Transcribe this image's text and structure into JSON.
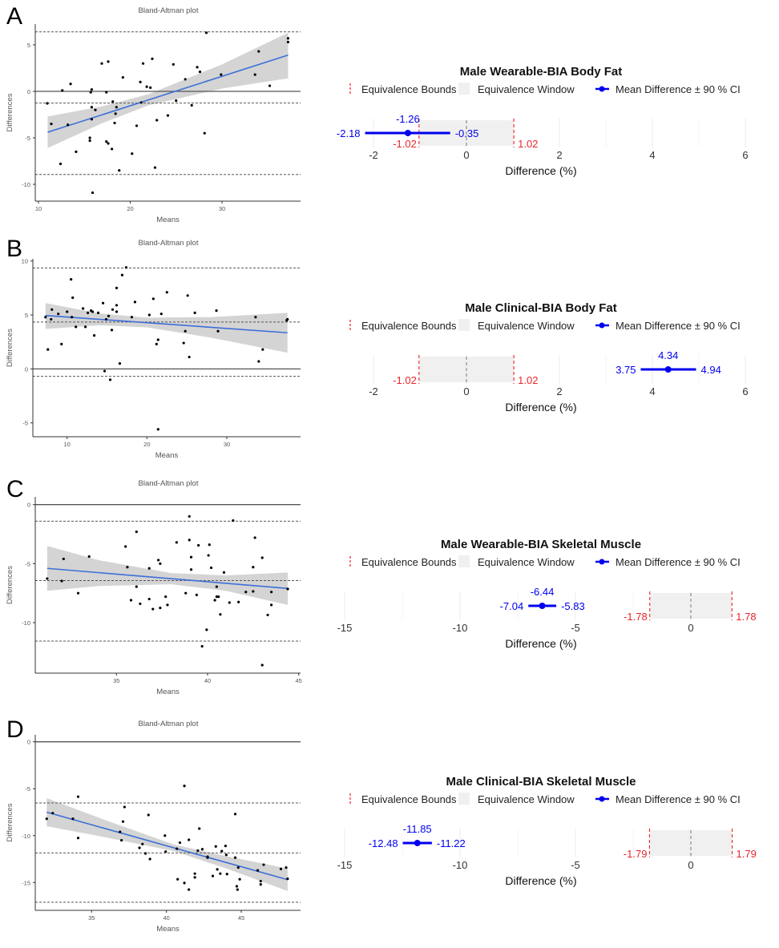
{
  "legend": {
    "bounds": "Equivalence Bounds",
    "window": "Equivalence Window",
    "mean": "Mean Difference ± 90 % CI"
  },
  "colors": {
    "band": "#cccccc",
    "regression": "#3d6fd8",
    "ci": "#0000ee",
    "bound": "#e8262b",
    "window": "#f0f0f0",
    "grid": "#ebebeb"
  },
  "chart_data": [
    {
      "panel": "A",
      "type": "scatter",
      "title": "Bland-Altman plot",
      "xlabel": "Means",
      "ylabel": "Differences",
      "xticks": [
        10,
        20,
        30
      ],
      "yticks": [
        5,
        0,
        -5,
        -10
      ],
      "mean": -1.26,
      "loa_upper": 6.4,
      "loa_lower": -8.94,
      "regression": [
        [
          11,
          -4.4
        ],
        [
          37.2,
          3.9
        ]
      ],
      "ci_band": [
        [
          11,
          -6.1,
          -2.7
        ],
        [
          17,
          -3.4,
          -1.6
        ],
        [
          22,
          -1.5,
          -0.3
        ],
        [
          30,
          0.3,
          2.9
        ],
        [
          37.2,
          1.4,
          6.3
        ]
      ],
      "points": [
        [
          10.96,
          -1.29
        ],
        [
          11.4,
          -3.5
        ],
        [
          12.6,
          0.1
        ],
        [
          12.4,
          -7.8
        ],
        [
          13.5,
          0.8
        ],
        [
          13.2,
          -3.6
        ],
        [
          14.1,
          -6.5
        ],
        [
          15.6,
          -5.0
        ],
        [
          15.6,
          -5.3
        ],
        [
          15.7,
          -0.1
        ],
        [
          15.8,
          0.2
        ],
        [
          15.8,
          -1.7
        ],
        [
          15.8,
          -3.0
        ],
        [
          15.9,
          -10.9
        ],
        [
          16.2,
          -2.0
        ],
        [
          16.9,
          3.0
        ],
        [
          17.6,
          3.2
        ],
        [
          17.4,
          -0.1
        ],
        [
          17.4,
          -5.4
        ],
        [
          17.6,
          -5.6
        ],
        [
          18.0,
          -6.2
        ],
        [
          18.1,
          -1.1
        ],
        [
          18.3,
          -3.4
        ],
        [
          18.4,
          -2.4
        ],
        [
          18.5,
          -1.7
        ],
        [
          18.8,
          -8.5
        ],
        [
          19.2,
          1.5
        ],
        [
          20.2,
          -6.7
        ],
        [
          20.7,
          -3.7
        ],
        [
          21.1,
          1.0
        ],
        [
          21.2,
          -1.2
        ],
        [
          21.4,
          3.0
        ],
        [
          21.8,
          0.5
        ],
        [
          22.2,
          0.4
        ],
        [
          22.4,
          3.5
        ],
        [
          22.7,
          -8.2
        ],
        [
          22.9,
          -3.1
        ],
        [
          24.1,
          -2.6
        ],
        [
          24.7,
          2.9
        ],
        [
          25.0,
          -1.0
        ],
        [
          26.0,
          1.3
        ],
        [
          26.7,
          -1.5
        ],
        [
          27.3,
          2.6
        ],
        [
          27.6,
          2.1
        ],
        [
          28.1,
          -4.5
        ],
        [
          28.3,
          6.3
        ],
        [
          29.9,
          1.8
        ],
        [
          33.6,
          1.8
        ],
        [
          34.0,
          4.3
        ],
        [
          35.2,
          0.6
        ],
        [
          37.2,
          5.7
        ],
        [
          37.2,
          5.3
        ]
      ]
    },
    {
      "panel": "B",
      "type": "scatter",
      "title": "Bland-Altman plot",
      "xlabel": "Means",
      "ylabel": "Differences",
      "xticks": [
        10,
        20,
        30
      ],
      "yticks": [
        10,
        5,
        0,
        -5
      ],
      "mean": 4.34,
      "loa_upper": 9.36,
      "loa_lower": -0.69,
      "regression": [
        [
          7.3,
          4.95
        ],
        [
          37.6,
          3.35
        ]
      ],
      "ci_band": [
        [
          7.3,
          3.7,
          6.1
        ],
        [
          14,
          4.05,
          5.15
        ],
        [
          20,
          3.85,
          4.75
        ],
        [
          28,
          2.9,
          4.8
        ],
        [
          37.6,
          1.5,
          5.2
        ]
      ],
      "points": [
        [
          7.3,
          4.8
        ],
        [
          7.6,
          1.8
        ],
        [
          8.1,
          5.5
        ],
        [
          8.0,
          4.6
        ],
        [
          8.9,
          5.1
        ],
        [
          9.3,
          2.3
        ],
        [
          10.0,
          5.3
        ],
        [
          10.5,
          8.3
        ],
        [
          10.7,
          6.6
        ],
        [
          10.6,
          4.8
        ],
        [
          11.1,
          3.9
        ],
        [
          12.0,
          5.6
        ],
        [
          12.3,
          3.9
        ],
        [
          12.6,
          5.2
        ],
        [
          13.0,
          5.4
        ],
        [
          13.2,
          5.3
        ],
        [
          13.4,
          3.1
        ],
        [
          13.9,
          5.2
        ],
        [
          14.5,
          6.1
        ],
        [
          14.7,
          -0.2
        ],
        [
          14.9,
          4.6
        ],
        [
          15.2,
          4.9
        ],
        [
          15.4,
          -1.0
        ],
        [
          15.6,
          3.6
        ],
        [
          15.7,
          5.5
        ],
        [
          16.2,
          7.5
        ],
        [
          16.2,
          5.9
        ],
        [
          16.2,
          5.3
        ],
        [
          16.6,
          0.5
        ],
        [
          16.9,
          8.7
        ],
        [
          17.4,
          9.4
        ],
        [
          18.1,
          4.8
        ],
        [
          18.5,
          6.2
        ],
        [
          20.3,
          5.0
        ],
        [
          20.8,
          6.5
        ],
        [
          21.2,
          2.3
        ],
        [
          21.4,
          2.7
        ],
        [
          21.4,
          -5.6
        ],
        [
          21.8,
          5.1
        ],
        [
          22.5,
          7.1
        ],
        [
          24.6,
          2.4
        ],
        [
          24.8,
          3.5
        ],
        [
          25.1,
          6.8
        ],
        [
          25.3,
          1.1
        ],
        [
          26.0,
          5.2
        ],
        [
          28.7,
          5.4
        ],
        [
          28.9,
          3.5
        ],
        [
          33.6,
          4.8
        ],
        [
          34.0,
          0.7
        ],
        [
          34.5,
          1.8
        ],
        [
          37.5,
          4.5
        ],
        [
          37.6,
          4.6
        ]
      ]
    },
    {
      "panel": "C",
      "type": "scatter",
      "title": "Bland-Altman plot",
      "xlabel": "Means",
      "ylabel": "Differences",
      "xticks": [
        35,
        40,
        45
      ],
      "yticks": [
        0,
        -5,
        -10
      ],
      "mean": -6.44,
      "loa_upper": -1.4,
      "loa_lower": -11.56,
      "regression": [
        [
          31.2,
          -5.4
        ],
        [
          44.4,
          -7.1
        ]
      ],
      "ci_band": [
        [
          31.2,
          -7.3,
          -3.5
        ],
        [
          34,
          -6.9,
          -4.7
        ],
        [
          38,
          -6.75,
          -5.8
        ],
        [
          41,
          -7.3,
          -6.0
        ],
        [
          44.4,
          -8.5,
          -5.75
        ]
      ],
      "points": [
        [
          31.2,
          -6.27
        ],
        [
          32.0,
          -6.47
        ],
        [
          32.1,
          -4.6
        ],
        [
          32.9,
          -7.5
        ],
        [
          33.5,
          -4.4
        ],
        [
          35.5,
          -3.55
        ],
        [
          35.6,
          -5.3
        ],
        [
          35.8,
          -8.1
        ],
        [
          36.1,
          -2.3
        ],
        [
          36.1,
          -6.95
        ],
        [
          36.3,
          -8.4
        ],
        [
          36.8,
          -8.0
        ],
        [
          36.8,
          -5.4
        ],
        [
          37.0,
          -8.85
        ],
        [
          37.3,
          -4.7
        ],
        [
          37.4,
          -5.0
        ],
        [
          37.4,
          -8.75
        ],
        [
          37.7,
          -7.8
        ],
        [
          37.8,
          -8.5
        ],
        [
          38.3,
          -3.2
        ],
        [
          38.8,
          -7.5
        ],
        [
          39.0,
          -1.0
        ],
        [
          39.0,
          -3.0
        ],
        [
          39.1,
          -4.45
        ],
        [
          39.1,
          -5.5
        ],
        [
          39.4,
          -7.65
        ],
        [
          39.5,
          -3.45
        ],
        [
          39.7,
          -12.0
        ],
        [
          39.95,
          -10.6
        ],
        [
          40.1,
          -3.4
        ],
        [
          40.05,
          -4.3
        ],
        [
          40.2,
          -5.35
        ],
        [
          40.4,
          -8.1
        ],
        [
          40.5,
          -6.95
        ],
        [
          40.5,
          -7.8
        ],
        [
          40.6,
          -7.8
        ],
        [
          40.7,
          -9.3
        ],
        [
          40.9,
          -5.75
        ],
        [
          41.2,
          -8.3
        ],
        [
          41.4,
          -1.35
        ],
        [
          41.7,
          -8.25
        ],
        [
          42.1,
          -7.4
        ],
        [
          42.5,
          -5.3
        ],
        [
          42.5,
          -7.35
        ],
        [
          42.6,
          -2.8
        ],
        [
          43.0,
          -4.5
        ],
        [
          43.0,
          -13.6
        ],
        [
          43.3,
          -9.35
        ],
        [
          43.5,
          -8.5
        ],
        [
          43.5,
          -7.4
        ],
        [
          44.4,
          -7.15
        ]
      ]
    },
    {
      "panel": "D",
      "type": "scatter",
      "title": "Bland-Altman plot",
      "xlabel": "Means",
      "ylabel": "Differences",
      "xticks": [
        35,
        40,
        45
      ],
      "yticks": [
        0,
        -5,
        -10,
        -15
      ],
      "mean": -11.85,
      "loa_upper": -6.52,
      "loa_lower": -17.1,
      "regression": [
        [
          32,
          -7.5
        ],
        [
          48.1,
          -14.7
        ]
      ],
      "ci_band": [
        [
          32,
          -9.0,
          -6.0
        ],
        [
          36,
          -10.2,
          -8.4
        ],
        [
          40.5,
          -11.65,
          -10.95
        ],
        [
          44,
          -13.5,
          -12.2
        ],
        [
          48.1,
          -15.9,
          -13.5
        ]
      ],
      "points": [
        [
          32.0,
          -8.2
        ],
        [
          32.4,
          -7.6
        ],
        [
          33.75,
          -8.2
        ],
        [
          34.1,
          -5.85
        ],
        [
          34.1,
          -10.25
        ],
        [
          36.9,
          -9.6
        ],
        [
          37.0,
          -10.5
        ],
        [
          37.1,
          -8.5
        ],
        [
          37.2,
          -6.95
        ],
        [
          38.2,
          -11.3
        ],
        [
          38.4,
          -10.9
        ],
        [
          38.6,
          -11.9
        ],
        [
          38.8,
          -7.8
        ],
        [
          38.9,
          -12.5
        ],
        [
          39.9,
          -10.0
        ],
        [
          39.95,
          -11.7
        ],
        [
          40.7,
          -11.4
        ],
        [
          40.75,
          -14.65
        ],
        [
          40.9,
          -10.75
        ],
        [
          41.2,
          -4.7
        ],
        [
          41.2,
          -15.05
        ],
        [
          41.5,
          -10.45
        ],
        [
          41.5,
          -15.75
        ],
        [
          41.9,
          -14.05
        ],
        [
          41.9,
          -14.45
        ],
        [
          42.1,
          -11.6
        ],
        [
          42.2,
          -9.25
        ],
        [
          42.4,
          -11.45
        ],
        [
          42.75,
          -12.25
        ],
        [
          42.75,
          -12.35
        ],
        [
          43.1,
          -14.3
        ],
        [
          43.3,
          -11.15
        ],
        [
          43.4,
          -13.6
        ],
        [
          43.6,
          -14.05
        ],
        [
          43.7,
          -11.65
        ],
        [
          43.95,
          -11.1
        ],
        [
          44.0,
          -12.05
        ],
        [
          44.05,
          -14.1
        ],
        [
          44.6,
          -7.7
        ],
        [
          44.6,
          -12.35
        ],
        [
          44.7,
          -15.4
        ],
        [
          44.75,
          -15.75
        ],
        [
          44.8,
          -13.4
        ],
        [
          44.9,
          -14.65
        ],
        [
          46.1,
          -13.7
        ],
        [
          46.3,
          -14.85
        ],
        [
          46.3,
          -15.2
        ],
        [
          46.5,
          -13.1
        ],
        [
          47.65,
          -13.55
        ],
        [
          48.0,
          -13.4
        ],
        [
          48.1,
          -14.6
        ]
      ]
    },
    {
      "panel": "A",
      "type": "equivalence",
      "title": "Male Wearable-BIA Body Fat",
      "xlabel": "Difference (%)",
      "xticks": [
        -2,
        0,
        2,
        4,
        6
      ],
      "bounds": [
        -1.02,
        1.02
      ],
      "bound_labels": [
        "-1.02",
        "1.02"
      ],
      "mean": -1.26,
      "ci": [
        -2.18,
        -0.35
      ],
      "labels": [
        "-1.26",
        "-2.18",
        "-0.35"
      ]
    },
    {
      "panel": "B",
      "type": "equivalence",
      "title": "Male Clinical-BIA Body Fat",
      "xlabel": "Difference (%)",
      "xticks": [
        -2,
        0,
        2,
        4,
        6
      ],
      "bounds": [
        -1.02,
        1.02
      ],
      "bound_labels": [
        "-1.02",
        "1.02"
      ],
      "mean": 4.34,
      "ci": [
        3.75,
        4.94
      ],
      "labels": [
        "4.34",
        "3.75",
        "4.94"
      ]
    },
    {
      "panel": "C",
      "type": "equivalence",
      "title": "Male Wearable-BIA Skeletal Muscle",
      "xlabel": "Difference (%)",
      "xticks": [
        -15,
        -10,
        -5,
        0
      ],
      "bounds": [
        -1.78,
        1.78
      ],
      "bound_labels": [
        "-1.78",
        "1.78"
      ],
      "mean": -6.44,
      "ci": [
        -7.04,
        -5.83
      ],
      "labels": [
        "-6.44",
        "-7.04",
        "-5.83"
      ]
    },
    {
      "panel": "D",
      "type": "equivalence",
      "title": "Male Clinical-BIA Skeletal Muscle",
      "xlabel": "Difference (%)",
      "xticks": [
        -15,
        -10,
        -5,
        0
      ],
      "bounds": [
        -1.79,
        1.79
      ],
      "bound_labels": [
        "-1.79",
        "1.79"
      ],
      "mean": -11.85,
      "ci": [
        -12.48,
        -11.22
      ],
      "labels": [
        "-11.85",
        "-12.48",
        "-11.22"
      ]
    }
  ]
}
